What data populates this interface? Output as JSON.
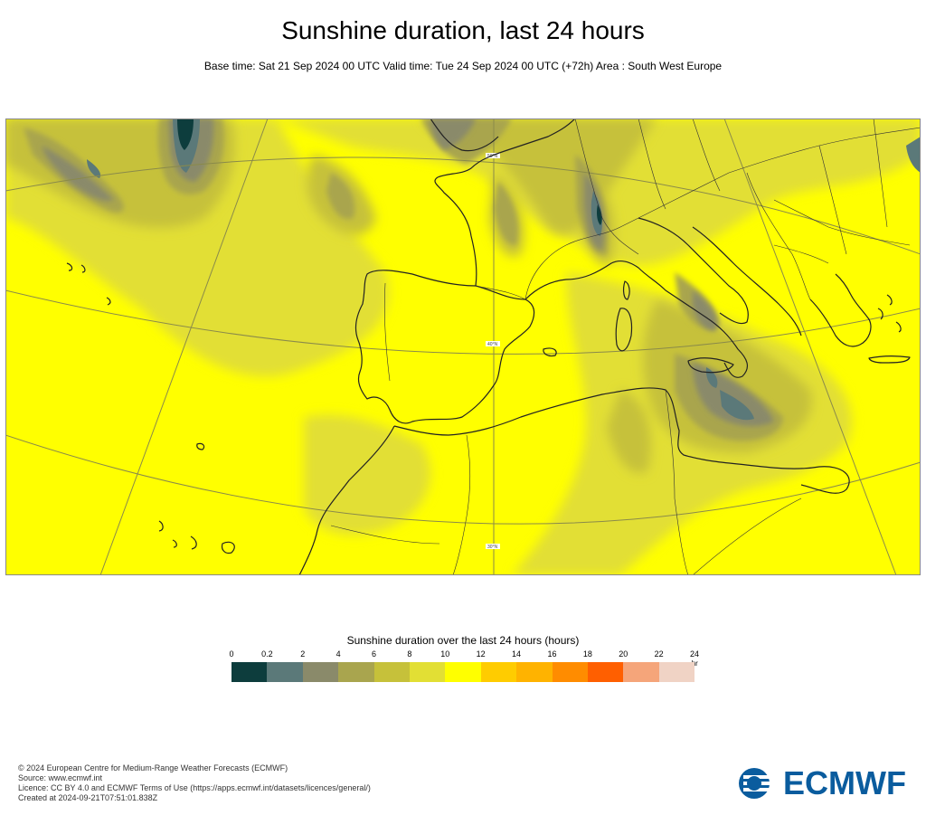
{
  "header": {
    "title": "Sunshine duration, last 24 hours",
    "subtitle": "Base time: Sat 21 Sep 2024 00 UTC Valid time: Tue 24 Sep 2024 00 UTC (+72h) Area : South West Europe"
  },
  "map": {
    "area": "South West Europe",
    "latitude_labels": [
      "50°N",
      "40°N",
      "30°N"
    ],
    "background_color": "#ffff00",
    "coastline_color": "#222222",
    "graticule_color": "#8a8a4a"
  },
  "legend": {
    "title": "Sunshine duration over the last 24 hours (hours)",
    "unit": "-hr",
    "ticks": [
      "0",
      "0.2",
      "2",
      "4",
      "6",
      "8",
      "10",
      "12",
      "14",
      "16",
      "18",
      "20",
      "22",
      "24"
    ],
    "colors": [
      "#0d3d3d",
      "#5b7979",
      "#8a8a6a",
      "#a9a54e",
      "#c6c13a",
      "#e2df34",
      "#ffff00",
      "#ffcc00",
      "#ffb300",
      "#ff8c00",
      "#ff5f00",
      "#f5a57a",
      "#f0d3c5"
    ]
  },
  "footer": {
    "copyright": "© 2024 European Centre for Medium-Range Weather Forecasts (ECMWF)",
    "source": "Source: www.ecmwf.int",
    "licence": "Licence: CC BY 4.0 and ECMWF Terms of Use (https://apps.ecmwf.int/datasets/licences/general/)",
    "created": "Created at 2024-09-21T07:51:01.838Z"
  },
  "brand": {
    "name": "ECMWF",
    "color": "#0a5c9e"
  }
}
